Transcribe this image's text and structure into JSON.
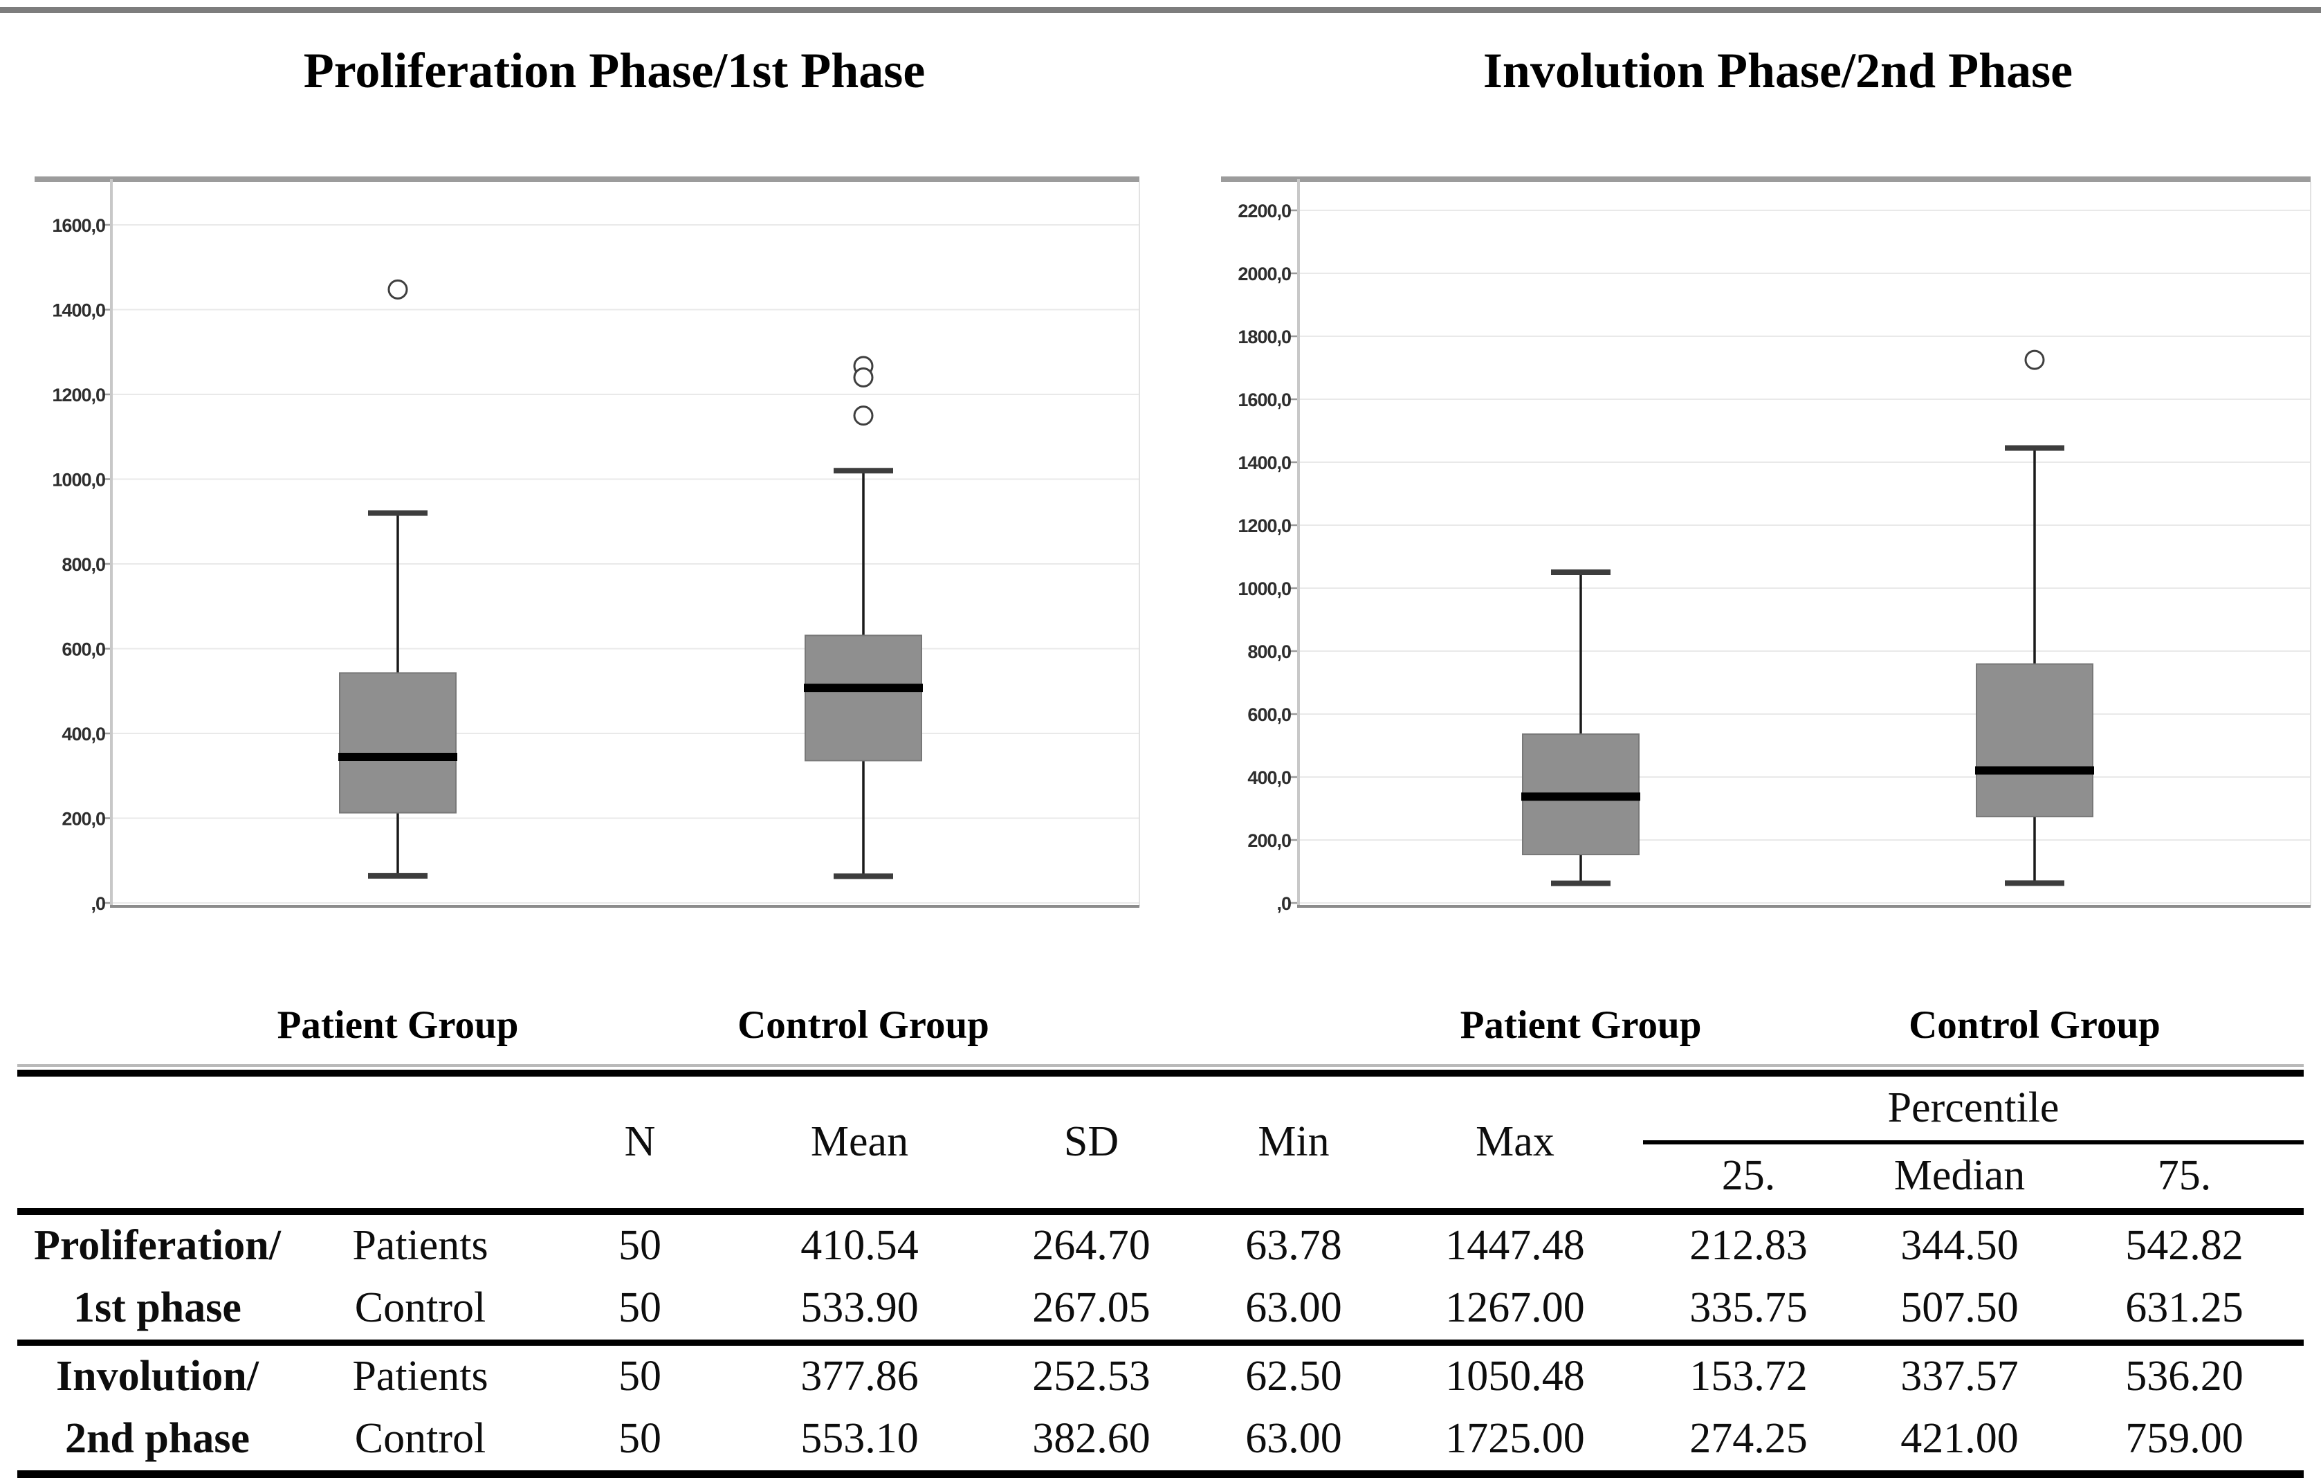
{
  "colors": {
    "page_rule": "#7d7d7d",
    "table_gray_rule": "#b9b9b9",
    "grid": "#e9e9e9",
    "plot_top_border": "#9c9c9c",
    "spine": "#c8c8c8",
    "right_spine": "#e2e2e2",
    "axis_line": "#8c8c8c",
    "tick_mark": "#9a9a9a",
    "box_fill": "#8f8f8f",
    "box_stroke": "#787878",
    "median": "#000000",
    "whisker": "#1a1a1a",
    "whisker_cap": "#3d3d3d",
    "outlier": "#3f3f3f",
    "table_border": "#000000"
  },
  "chart_data": [
    {
      "type": "boxplot",
      "title": "Proliferation Phase/1st Phase",
      "ylim": [
        0,
        1700
      ],
      "grid": true,
      "yticks": [
        {
          "value": 1600,
          "label": "1600,0"
        },
        {
          "value": 1400,
          "label": "1400,0"
        },
        {
          "value": 1200,
          "label": "1200,0"
        },
        {
          "value": 1000,
          "label": "1000,0"
        },
        {
          "value": 800,
          "label": "800,0"
        },
        {
          "value": 600,
          "label": "600,0"
        },
        {
          "value": 400,
          "label": "400,0"
        },
        {
          "value": 200,
          "label": "200,0"
        },
        {
          "value": 0,
          "label": ",0"
        }
      ],
      "groups": [
        {
          "label": "Patient Group",
          "n": 50,
          "q1": 212.83,
          "median": 344.5,
          "q3": 542.82,
          "whisker_low": 63.78,
          "whisker_high": 920,
          "outliers": [
            1447.48
          ]
        },
        {
          "label": "Control Group",
          "n": 50,
          "q1": 335.75,
          "median": 507.5,
          "q3": 631.25,
          "whisker_low": 63.0,
          "whisker_high": 1020,
          "outliers": [
            1267,
            1240,
            1150
          ]
        }
      ]
    },
    {
      "type": "boxplot",
      "title": "Involution Phase/2nd Phase",
      "ylim": [
        0,
        2290
      ],
      "grid": true,
      "yticks": [
        {
          "value": 2200,
          "label": "2200,0"
        },
        {
          "value": 2000,
          "label": "2000,0"
        },
        {
          "value": 1800,
          "label": "1800,0"
        },
        {
          "value": 1600,
          "label": "1600,0"
        },
        {
          "value": 1400,
          "label": "1400,0"
        },
        {
          "value": 1200,
          "label": "1200,0"
        },
        {
          "value": 1000,
          "label": "1000,0"
        },
        {
          "value": 800,
          "label": "800,0"
        },
        {
          "value": 600,
          "label": "600,0"
        },
        {
          "value": 400,
          "label": "400,0"
        },
        {
          "value": 200,
          "label": "200,0"
        },
        {
          "value": 0,
          "label": ",0"
        }
      ],
      "groups": [
        {
          "label": "Patient Group",
          "n": 50,
          "q1": 153.72,
          "median": 337.57,
          "q3": 536.2,
          "whisker_low": 62.5,
          "whisker_high": 1050.48,
          "outliers": []
        },
        {
          "label": "Control Group",
          "n": 50,
          "q1": 274.25,
          "median": 421.0,
          "q3": 759.0,
          "whisker_low": 63.0,
          "whisker_high": 1445,
          "outliers": [
            1725
          ]
        }
      ]
    }
  ],
  "table": {
    "headers": {
      "n": "N",
      "mean": "Mean",
      "sd": "SD",
      "min": "Min",
      "max": "Max",
      "percentile": "Percentile",
      "p25": "25.",
      "median": "Median",
      "p75": "75."
    },
    "rows": [
      [
        "Proliferation/",
        "Patients",
        "50",
        "410.54",
        "264.70",
        "63.78",
        "1447.48",
        "212.83",
        "344.50",
        "542.82"
      ],
      [
        "1st phase",
        "Control",
        "50",
        "533.90",
        "267.05",
        "63.00",
        "1267.00",
        "335.75",
        "507.50",
        "631.25"
      ],
      [
        "Involution/",
        "Patients",
        "50",
        "377.86",
        "252.53",
        "62.50",
        "1050.48",
        "153.72",
        "337.57",
        "536.20"
      ],
      [
        "2nd phase",
        "Control",
        "50",
        "553.10",
        "382.60",
        "63.00",
        "1725.00",
        "274.25",
        "421.00",
        "759.00"
      ]
    ]
  }
}
